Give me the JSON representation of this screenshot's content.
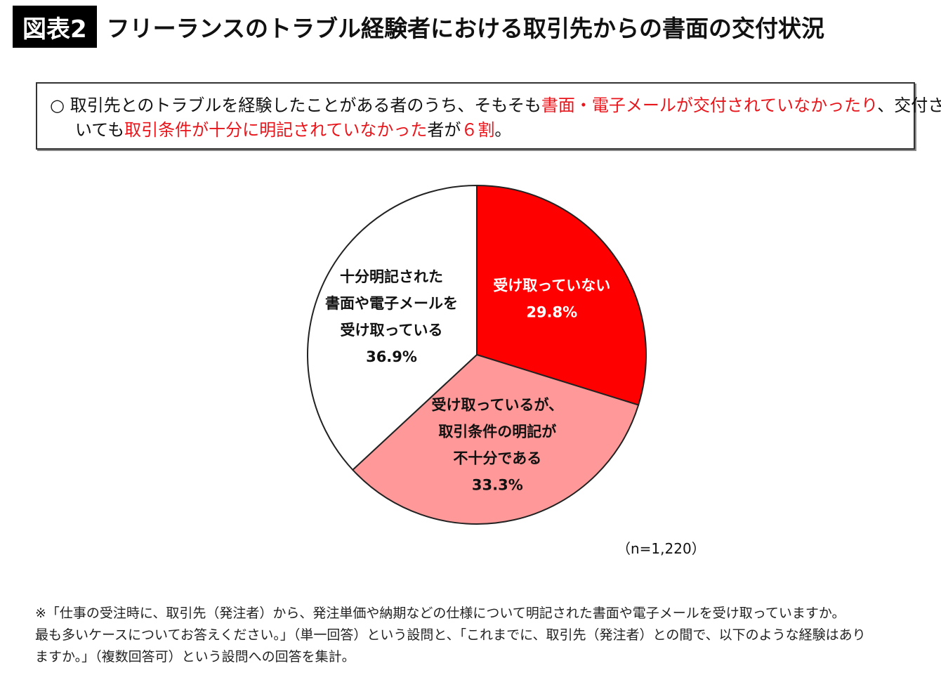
{
  "header": {
    "badge": "図表2",
    "title": "フリーランスのトラブル経験者における取引先からの書面の交付状況"
  },
  "summary": {
    "bullet": "○",
    "line1_a": "取引先とのトラブルを経験したことがある者のうち、そもそも",
    "line1_b": "書面・電子メールが交付されていなかったり",
    "line1_c": "、交付されて",
    "line2_a": "いても",
    "line2_b": "取引条件が十分に明記されていなかった",
    "line2_c": "者が",
    "line2_d": "６",
    "line2_e": "割",
    "line2_f": "。"
  },
  "chart_data": {
    "type": "pie",
    "start": "12 o'clock",
    "direction": "clockwise",
    "slices": [
      {
        "label_lines": [
          "受け取っていない"
        ],
        "value": 29.8,
        "value_label": "29.8%",
        "color": "#ff0000",
        "text_color": "#ffffff"
      },
      {
        "label_lines": [
          "受け取っているが、",
          "取引条件の明記が",
          "不十分である"
        ],
        "value": 33.3,
        "value_label": "33.3%",
        "color": "#ff9999",
        "text_color": "#111111"
      },
      {
        "label_lines": [
          "十分明記された",
          "書面や電子メールを",
          "受け取っている"
        ],
        "value": 36.9,
        "value_label": "36.9%",
        "color": "#ffffff",
        "text_color": "#111111"
      }
    ],
    "sample_note": "（n=1,220）"
  },
  "footnote": {
    "line1": "※「仕事の受注時に、取引先（発注者）から、発注単価や納期などの仕様について明記された書面や電子メールを受け取っていますか。",
    "line2": "最も多いケースについてお答えください。」（単一回答）という設問と、「これまでに、取引先（発注者）との間で、以下のような経験はあり",
    "line3": "ますか。」（複数回答可）という設問への回答を集計。"
  }
}
